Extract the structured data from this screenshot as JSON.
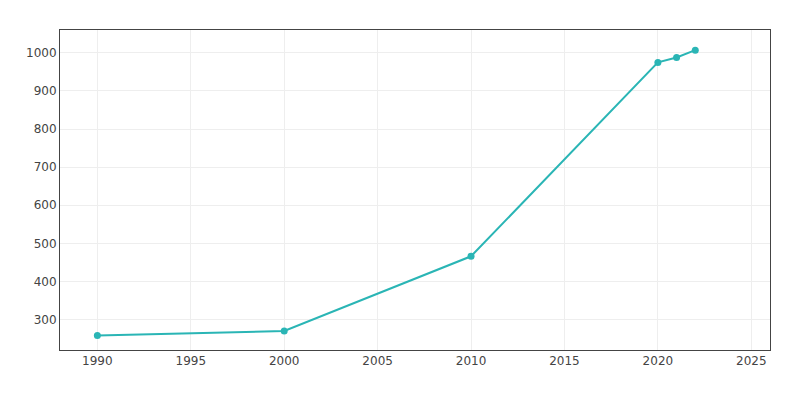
{
  "chart_data": {
    "type": "line",
    "x": [
      1990,
      2000,
      2010,
      2020,
      2021,
      2022
    ],
    "values": [
      258,
      270,
      466,
      975,
      988,
      1007
    ],
    "color": "#2ab5b5",
    "marker": "circle",
    "line_style": "solid",
    "xlim": [
      1988,
      2026
    ],
    "ylim": [
      220,
      1060
    ],
    "xticks": [
      1990,
      1995,
      2000,
      2005,
      2010,
      2015,
      2020,
      2025
    ],
    "yticks": [
      300,
      400,
      500,
      600,
      700,
      800,
      900,
      1000
    ],
    "grid": true
  }
}
